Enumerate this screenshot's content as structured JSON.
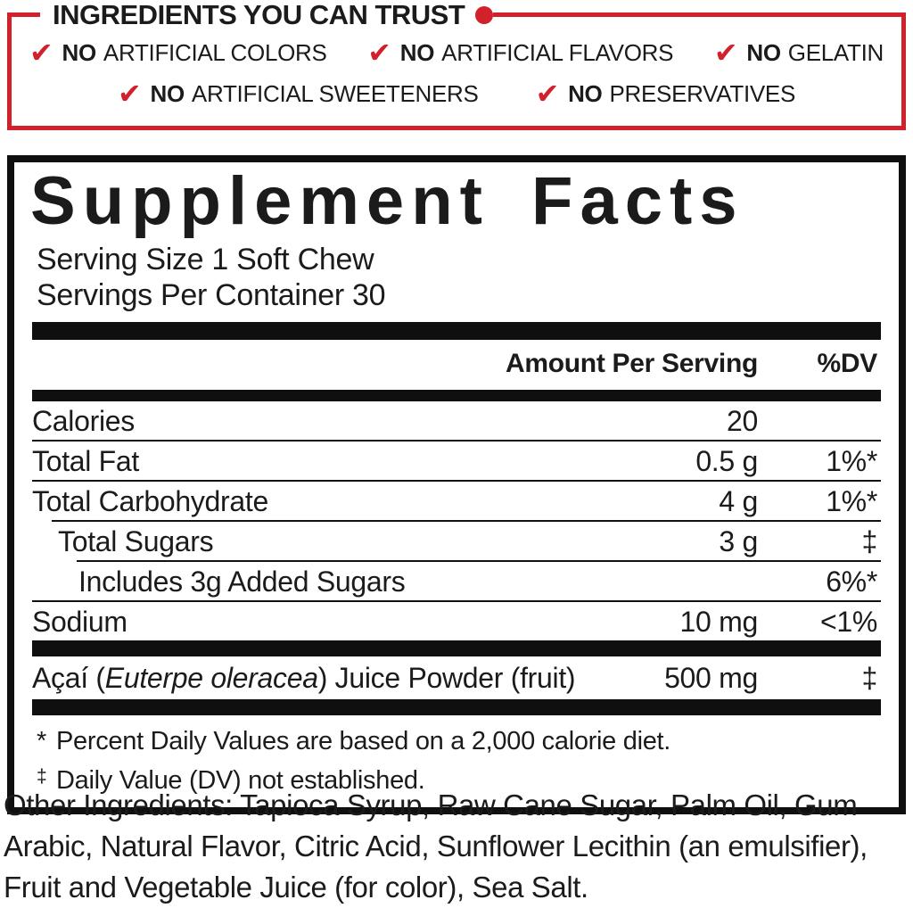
{
  "colors": {
    "red": "#d2212b",
    "black": "#0f0f0f"
  },
  "trust": {
    "title": "INGREDIENTS YOU CAN TRUST",
    "check_icon": "✔",
    "claims_row1": [
      {
        "no": "NO",
        "text": "ARTIFICIAL COLORS"
      },
      {
        "no": "NO",
        "text": "ARTIFICIAL FLAVORS"
      },
      {
        "no": "NO",
        "text": "GELATIN"
      }
    ],
    "claims_row2": [
      {
        "no": "NO",
        "text": "ARTIFICIAL SWEETENERS"
      },
      {
        "no": "NO",
        "text": "PRESERVATIVES"
      }
    ]
  },
  "facts": {
    "title": "Supplement Facts",
    "serving_size": "Serving Size 1 Soft Chew",
    "servings_per_container": "Servings Per Container 30",
    "header": {
      "amount": "Amount Per Serving",
      "dv": "%DV"
    },
    "rows": [
      {
        "name": "Calories",
        "amount": "20",
        "dv": ""
      },
      {
        "name": "Total Fat",
        "amount": "0.5 g",
        "dv": "1%*"
      },
      {
        "name": "Total Carbohydrate",
        "amount": "4 g",
        "dv": "1%*"
      },
      {
        "name": "Total Sugars",
        "amount": "3 g",
        "dv": "‡"
      },
      {
        "name": "Includes 3g Added Sugars",
        "amount": "",
        "dv": "6%*"
      },
      {
        "name": "Sodium",
        "amount": "10 mg",
        "dv": "<1%"
      }
    ],
    "acai": {
      "pre": "Açaí (",
      "italic": "Euterpe oleracea",
      "post": ") Juice Powder (fruit)",
      "amount": "500 mg",
      "dv": "‡"
    },
    "footnotes": [
      {
        "symbol": "*",
        "text": "Percent Daily Values are based on a 2,000 calorie diet."
      },
      {
        "symbol": "‡",
        "text": "Daily Value (DV) not established."
      }
    ]
  },
  "other_ingredients": {
    "label": "Other Ingredients:",
    "text": " Tapioca Syrup, Raw Cane Sugar, Palm Oil, Gum Arabic, Natural Flavor, Citric Acid, Sunflower Lecithin (an emulsifier), Fruit and Vegetable Juice (for color), Sea Salt."
  }
}
